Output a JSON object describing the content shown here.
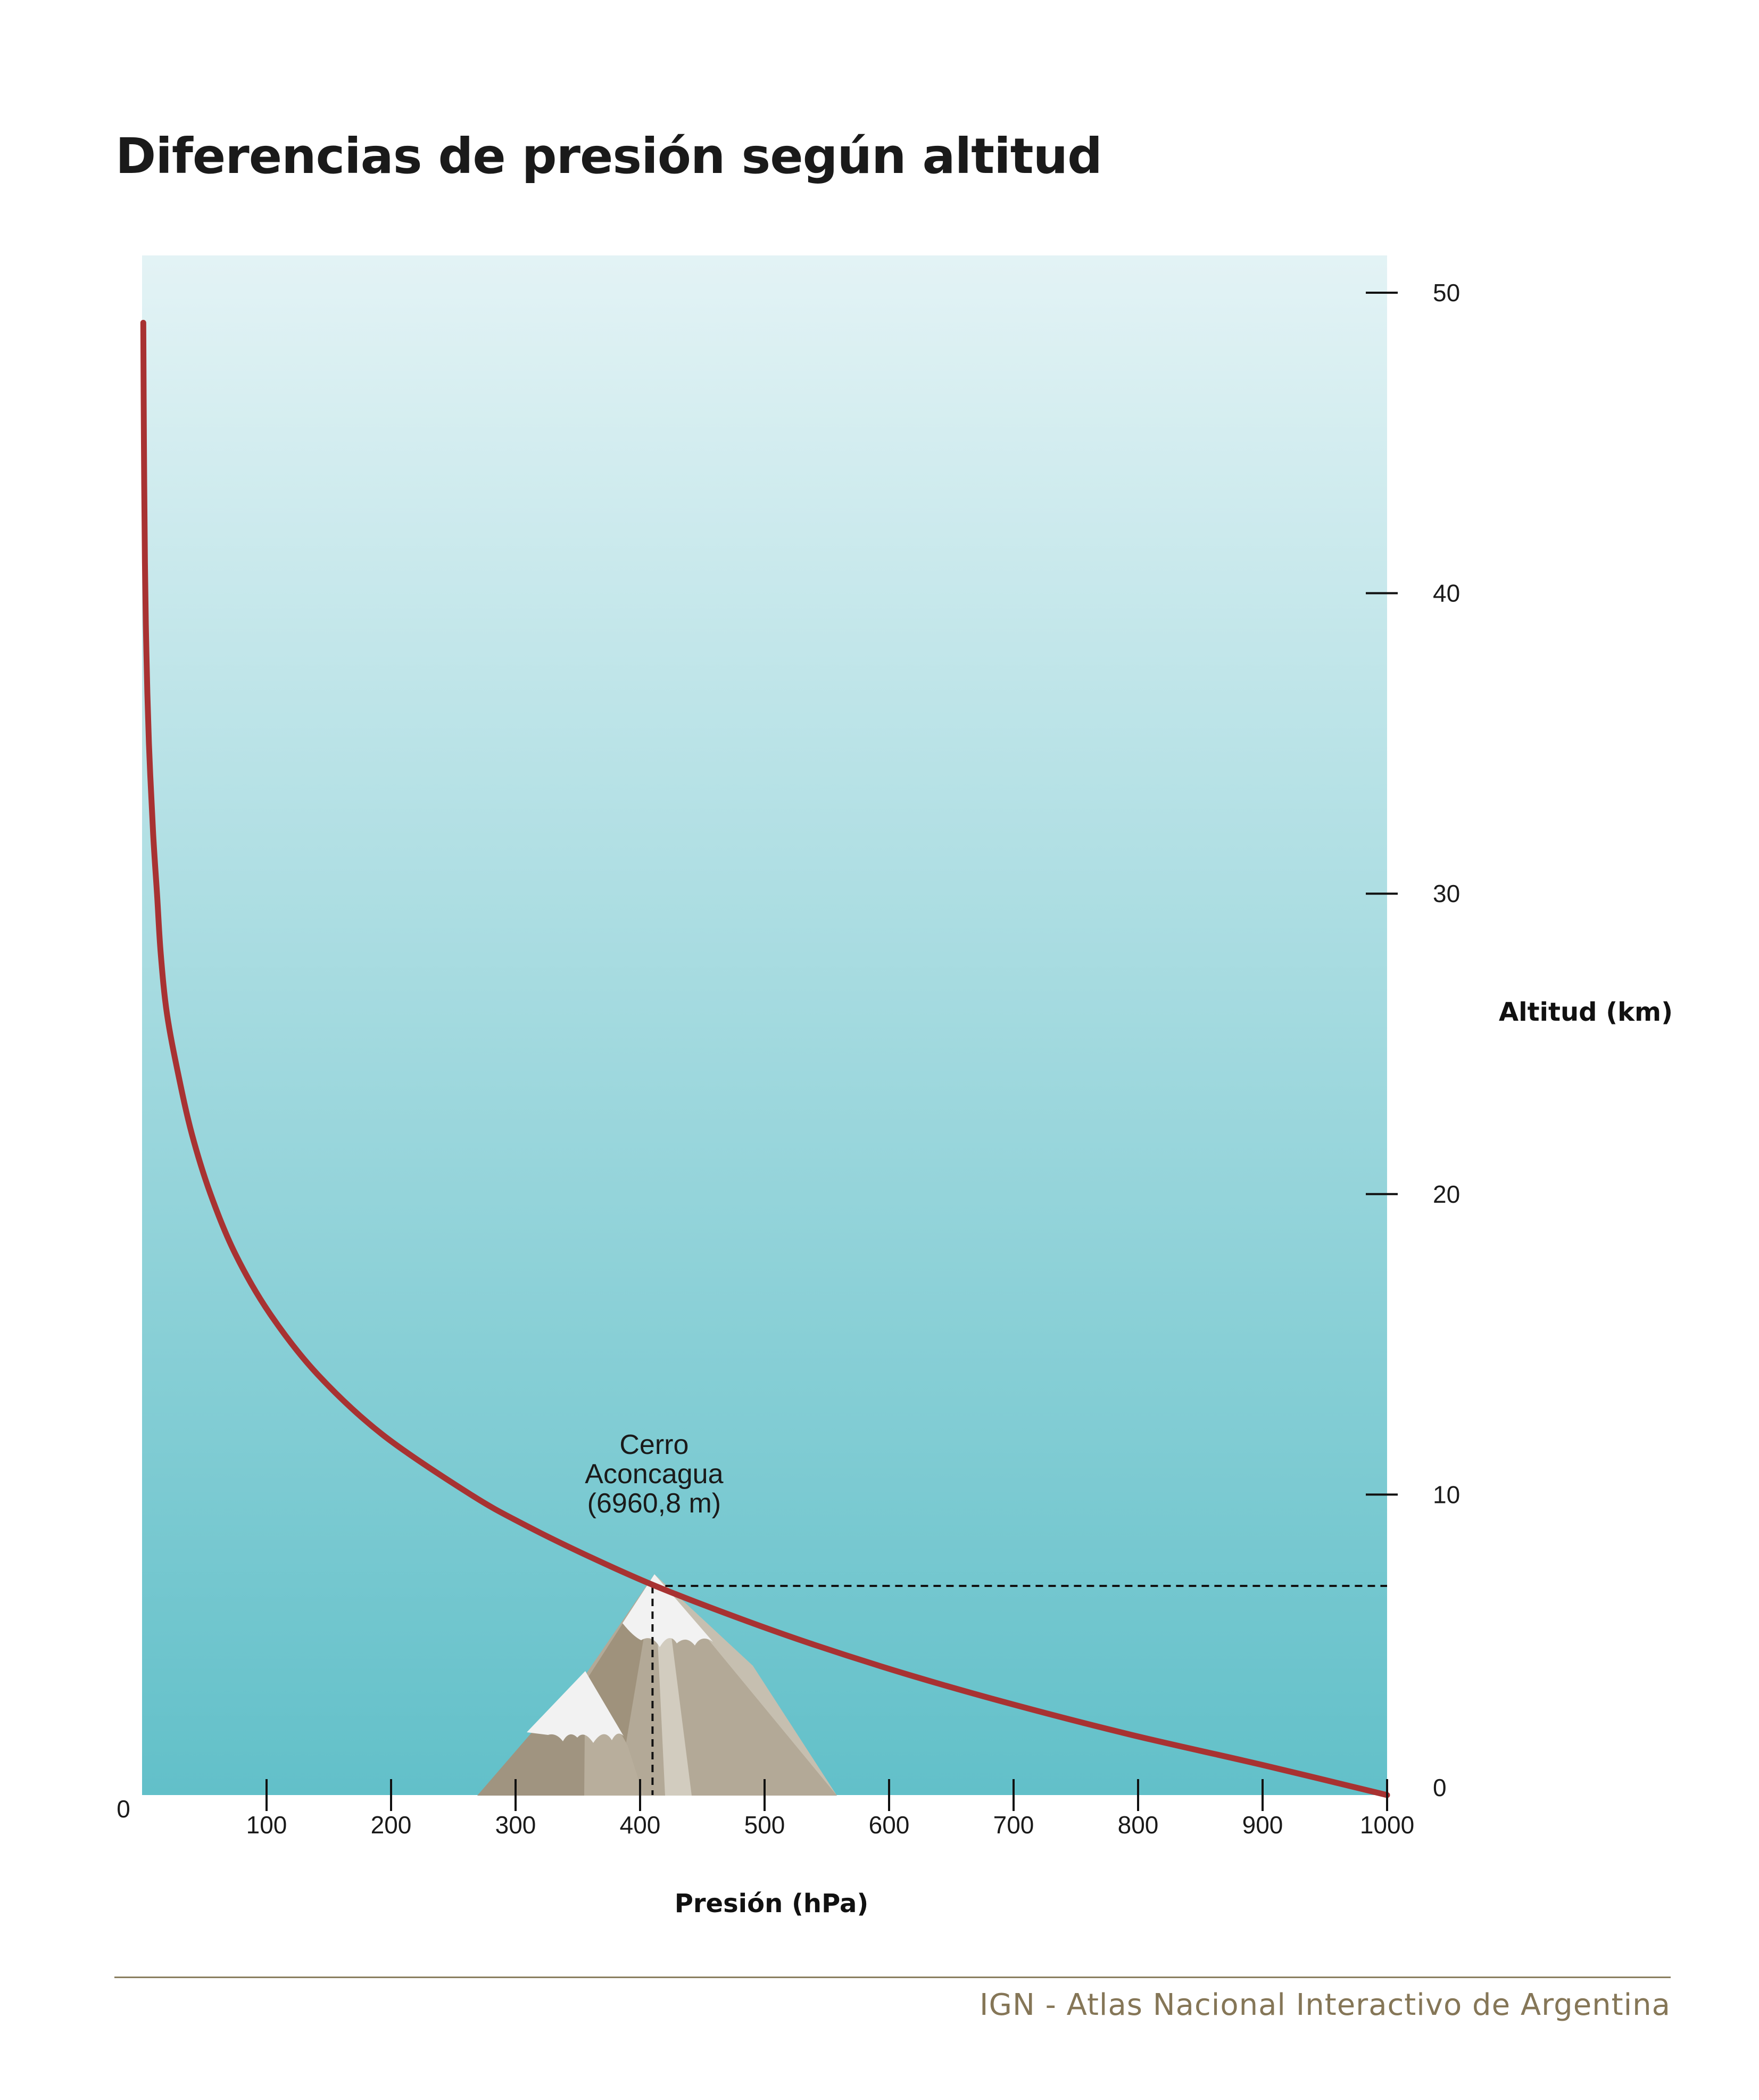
{
  "chart_data": {
    "type": "line",
    "title": "Diferencias de presión según altitud",
    "xlabel": "Presión (hPa)",
    "ylabel": "Altitud (km)",
    "xlim": [
      0,
      1000
    ],
    "ylim": [
      0,
      50
    ],
    "x_ticks": [
      "0",
      "100",
      "200",
      "300",
      "400",
      "500",
      "600",
      "700",
      "800",
      "900",
      "1000"
    ],
    "y_ticks": [
      "0",
      "10",
      "20",
      "30",
      "40",
      "50"
    ],
    "grid": false,
    "y_axis_position": "right",
    "series": [
      {
        "color": "#a83232",
        "x": [
          1013,
          900,
          795,
          701,
          616,
          540,
          472,
          410,
          356,
          307,
          264,
          193,
          141,
          103,
          75,
          55,
          40,
          29,
          20,
          15,
          12,
          8.9,
          5.5,
          3.5,
          2.3,
          1.5,
          1
        ],
        "y": [
          0,
          1,
          2,
          3,
          4,
          5,
          6,
          7,
          8,
          9,
          10,
          12,
          14,
          16,
          18,
          20,
          22,
          24,
          26,
          28,
          30,
          32,
          35,
          38,
          41,
          45,
          49
        ]
      }
    ],
    "annotations": [
      {
        "lines": [
          "Cerro",
          "Aconcagua",
          "(6960,8 m)"
        ],
        "x": 410,
        "y": 6.96
      }
    ],
    "colors": {
      "sky_top": "#e3f3f5",
      "sky_bottom": "#62c0c9",
      "curve": "#a83232",
      "mountain_light": "#b3a997",
      "mountain_dark": "#9d8f79",
      "snow": "#f2f2f2"
    }
  },
  "footer": {
    "source": "IGN - Atlas Nacional Interactivo de Argentina"
  }
}
